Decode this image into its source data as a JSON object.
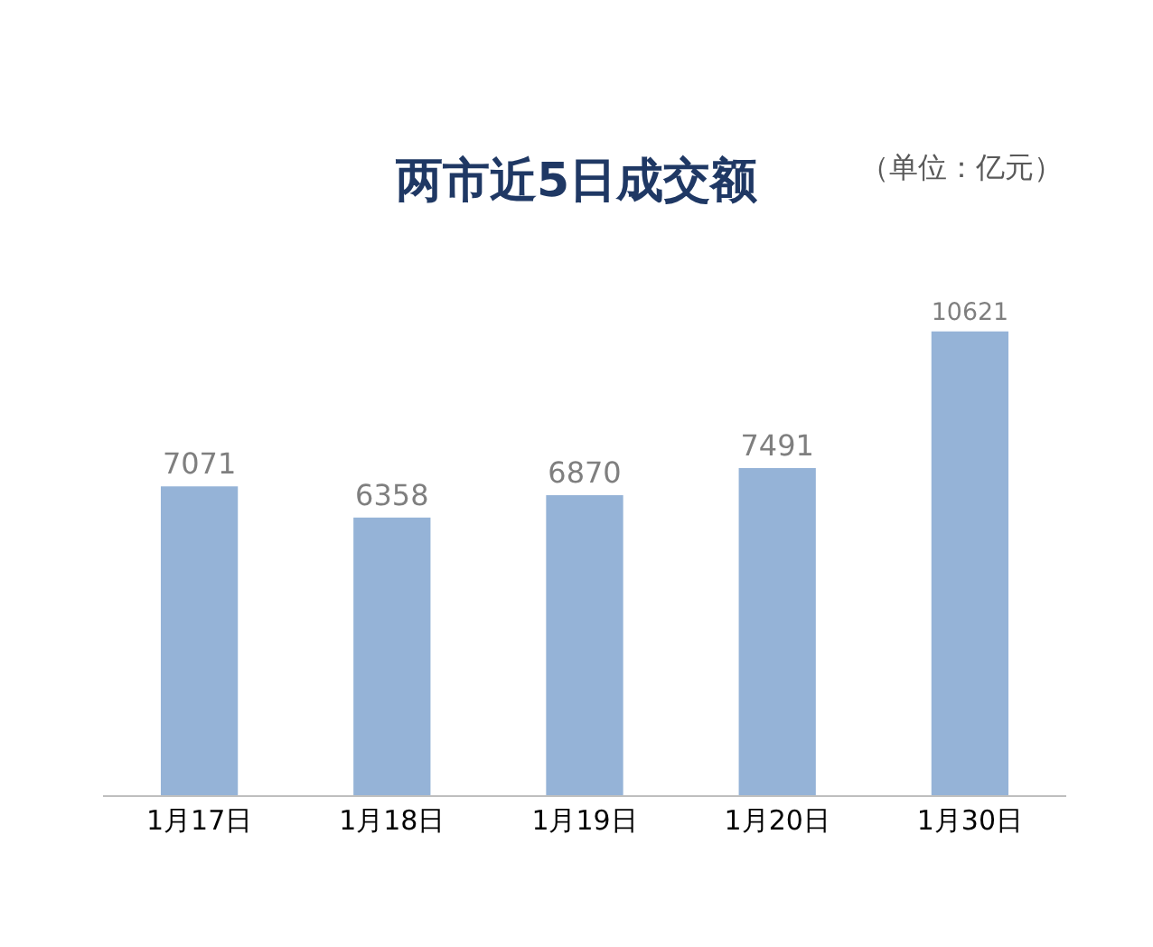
{
  "chart_data": {
    "type": "bar",
    "title": "两市近5日成交额",
    "annotations": [
      "（单位：亿元）"
    ],
    "categories": [
      "1月17日",
      "1月18日",
      "1月19日",
      "1月20日",
      "1月30日"
    ],
    "values": [
      7071,
      6358,
      6870,
      7491,
      10621
    ],
    "color": "#95b3d7",
    "data_labels": true,
    "legend": false
  }
}
